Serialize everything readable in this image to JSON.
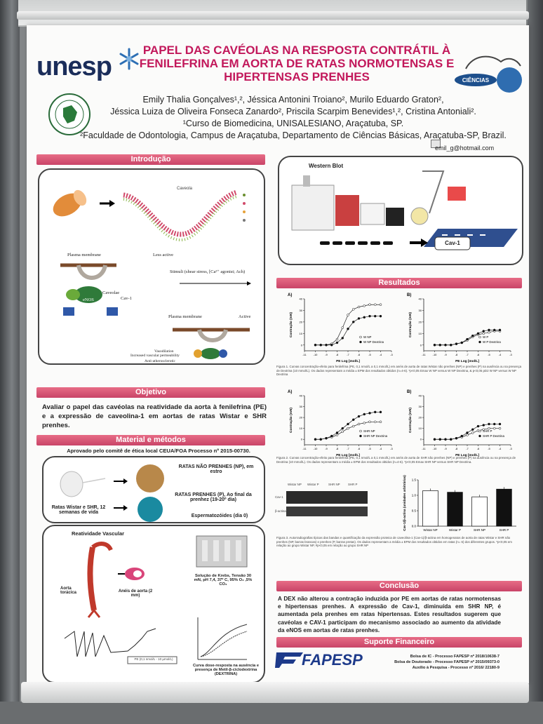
{
  "header": {
    "logo_text": "unesp",
    "title": "PAPEL DAS CAVÉOLAS NA RESPOSTA CONTRÁTIL À FENILEFRINA EM AORTA DE RATAS NORMOTENSAS E HIPERTENSAS PRENHES",
    "authors_line1": "Emily Thalia Gonçalves¹,², Jéssica Antonini Troiano², Murilo Eduardo Graton²,",
    "authors_line2": "Jéssica Luiza de Oliveira Fonseca Zanardo², Priscila Scarpim Benevides¹,², Cristina Antoniali².",
    "affiliation1": "¹Curso de Biomedicina, UNISALESIANO, Araçatuba, SP.",
    "affiliation2": "²Faculdade de Odontologia, Campus de Araçatuba, Departamento de Ciências Básicas, Araçatuba-SP, Brazil.",
    "email": "emil_g@hotmail.com"
  },
  "sections": {
    "introducao": "Introdução",
    "objetivo": "Objetivo",
    "material": "Material e métodos",
    "western": "Western Blot",
    "resultados": "Resultados",
    "conclusao": "Conclusão",
    "suporte": "Suporte Financeiro",
    "reatividade": "Reatividade Vascular"
  },
  "intro": {
    "caveola_label": "Caveola",
    "plasma_membrane": "Plasma membrane",
    "less_active": "Less active",
    "active": "Active",
    "stimuli": "Stimuli (shear stress, [Ca²⁺ agonist; Ach)",
    "caveolae": "Caveolae",
    "cav1": "Cav-1",
    "enos": "eNOS",
    "vasodilation": "Vasodilation",
    "permeability": "Increased vascular permeability",
    "antiatherogenic": "Anti-atherosclerotic"
  },
  "objetivo_text": "Avaliar o papel das cavéolas na reatividade da aorta à fenilefrina (PE) e a expressão de caveolina-1 em aortas de ratas Wistar e SHR prenhes.",
  "material": {
    "aprovado": "Aprovado pelo comitê de ética local CEUA/FOA Processo nº 2015-00730.",
    "rats_label": "Ratas Wistar e SHR, 12 semanas de vida",
    "np_label": "RATAS NÃO PRENHES (NP), em estro",
    "p_label": "RATAS PRENHES (P), Ao final da prenhez (19-20º dia)",
    "sperm_label": "Espermatozóides (dia 0)"
  },
  "reatividade": {
    "aorta": "Aorta torácica",
    "aneis": "Anéis de aorta (2 mm)",
    "krebs": "Solução de Krebs, Tensão 30 mN, pH 7,4, 37º C, 95% O₂ ,5% CO₂",
    "pe_label": "PE (0,1 nmol/L - 10 µmol/L)",
    "curve_label": "Curva dose-resposta na ausência e presença de Metil-β-ciclodextrina (DEXTRINA)"
  },
  "western": {
    "cav1_label": "Cav-1"
  },
  "results": {
    "fig1_caption": "Figura 1. Curvas concentração-efeito para fenilefrina (PE, 0,1 nmol/L a 0,1 mmol/L) em anéis de aorta de ratas Wistar não prenhes (NP) e prenhes (P) na ausência ou na presença de Dextrina (10 mmol/L). Os dados representam a média ± EPM dos resultados obtidos (n=4-6). *p<0,05 Emax W NP versus W NP Dextrina, & p<0,05 pD2 W NP versus W NP Dextrina",
    "fig2_caption": "Figura 2. Curvas concentração-efeito para fenilefrina (PE, 0,1 nmol/L a 0,1 mmol/L) em anéis de aorta de SHR não prenhes (NP) e prenhes (P) na ausência ou na presença de Dextrina (10 mmol/L). Os dados representam a média ± EPM dos resultados obtidos (n=4-6). *p<0,05 Emax SHR NP versus SHR NP Dextrina.",
    "fig3_caption": "Figura 3. Autorradiografias típicas das bandas e quantificação da expressão proteica de caveolina-1 (Cav-1)/β-actina em homogenatos de aorta de ratas Wistar e SHR não prenhes (NP, barras brancas) e prenhes (P, barras pretas). Os dados representam a média ± EPM dos resultados obtidos em ratas (n= 6) dos diferentes grupos. *p<0,05 em relação ao grupo Wistar NP, #p<0,05 em relação ao grupo SHR NP",
    "panel_a": "A)",
    "panel_b": "B)",
    "ylabel": "Contração (mN)",
    "xlabel": "PE Log [mol/L]",
    "legend_wnp": "W NP",
    "legend_wnpd": "W NP Dextrina",
    "legend_wp": "W P",
    "legend_wpd": "W P Dextrina",
    "legend_snp": "SHR NP",
    "legend_snpd": "SHR NP Dextrina",
    "legend_sp": "SHR P",
    "legend_spd": "SHR P Dextrina",
    "bar_ylabel": "Cav-1/β-actina (unidades arbitrárias)",
    "bar_categories": [
      "Wistar NP",
      "Wistar P",
      "SHR NP",
      "SHR P"
    ],
    "blot_lanes": [
      "Wistar NP",
      "Wistar P",
      "SHR NP",
      "SHR P"
    ],
    "blot_cav": "Cav-1",
    "blot_actin": "β-actina"
  },
  "conclusao_text": "A DEX não alterou a contração induzida por PE em aortas de ratas normotensas e hipertensas prenhes. A expressão de Cav-1, diminuída em SHR NP, é aumentada pela prenhes em ratas hipertensas. Estes resultados sugerem que cavéolas e CAV-1 participam do mecanismo associado ao aumento da atividade da eNOS em aortas de ratas prenhes.",
  "funding": {
    "logo_text": "FAPESP",
    "line1": "Bolsa de IC - Processo FAPESP nº 2018/10638-7",
    "line2": "Bolsa de Doutorado - Processo FAPESP nº 2015/09373-0",
    "line3": "Auxílio à Pesquisa - Processo nº 2016/ 22180-9"
  },
  "colors": {
    "banner": "#d9557a",
    "title": "#c2185b",
    "unesp": "#1b2d5a"
  },
  "chart_data": [
    {
      "type": "line",
      "title": "A)",
      "xlabel": "PE Log [mol/L]",
      "ylabel": "Contração (mN)",
      "xlim": [
        -11,
        -3
      ],
      "ylim": [
        -5,
        40
      ],
      "x": [
        -10,
        -9.5,
        -9,
        -8.5,
        -8,
        -7.5,
        -7,
        -6.5,
        -6,
        -5.5,
        -5,
        -4.5,
        -4
      ],
      "series": [
        {
          "name": "W NP",
          "values": [
            0,
            0,
            0,
            1,
            5,
            15,
            26,
            31,
            33,
            34,
            35,
            35,
            35
          ]
        },
        {
          "name": "W NP Dextrina",
          "values": [
            0,
            0,
            0,
            0,
            2,
            6,
            14,
            20,
            23,
            24,
            25,
            25,
            25
          ]
        }
      ]
    },
    {
      "type": "line",
      "title": "B)",
      "xlabel": "PE Log [mol/L]",
      "ylabel": "Contração (mN)",
      "xlim": [
        -11,
        -3
      ],
      "ylim": [
        -5,
        40
      ],
      "x": [
        -10,
        -9.5,
        -9,
        -8.5,
        -8,
        -7.5,
        -7,
        -6.5,
        -6,
        -5.5,
        -5,
        -4.5,
        -4
      ],
      "series": [
        {
          "name": "W P",
          "values": [
            0,
            0,
            0,
            0,
            1,
            2,
            4,
            7,
            9,
            10,
            11,
            12,
            12
          ]
        },
        {
          "name": "W P Dextrina",
          "values": [
            0,
            0,
            0,
            0,
            1,
            2,
            5,
            8,
            10,
            12,
            13,
            13,
            13
          ]
        }
      ]
    },
    {
      "type": "line",
      "title": "A)",
      "xlabel": "PE Log [mol/L]",
      "ylabel": "Contração (mN)",
      "xlim": [
        -11,
        -3
      ],
      "ylim": [
        -5,
        40
      ],
      "x": [
        -10,
        -9.5,
        -9,
        -8.5,
        -8,
        -7.5,
        -7,
        -6.5,
        -6,
        -5.5,
        -5,
        -4.5,
        -4
      ],
      "series": [
        {
          "name": "SHR NP",
          "values": [
            0,
            0,
            1,
            2,
            4,
            7,
            10,
            12,
            14,
            15,
            16,
            16,
            16
          ]
        },
        {
          "name": "SHR NP Dextrina",
          "values": [
            0,
            0,
            1,
            3,
            6,
            10,
            14,
            18,
            21,
            23,
            24,
            25,
            25
          ]
        }
      ]
    },
    {
      "type": "line",
      "title": "B)",
      "xlabel": "PE Log [mol/L]",
      "ylabel": "Contração (mN)",
      "xlim": [
        -11,
        -3
      ],
      "ylim": [
        -5,
        40
      ],
      "x": [
        -10,
        -9.5,
        -9,
        -8.5,
        -8,
        -7.5,
        -7,
        -6.5,
        -6,
        -5.5,
        -5,
        -4.5,
        -4
      ],
      "series": [
        {
          "name": "SHR P",
          "values": [
            0,
            0,
            0,
            0,
            1,
            2,
            4,
            6,
            8,
            9,
            10,
            10,
            10
          ]
        },
        {
          "name": "SHR P Dextrina",
          "values": [
            0,
            0,
            0,
            0,
            1,
            3,
            6,
            9,
            12,
            13,
            14,
            14,
            14
          ]
        }
      ]
    },
    {
      "type": "bar",
      "ylabel": "Cav-1/β-actina (unidades arbitrárias)",
      "categories": [
        "Wistar NP",
        "Wistar P",
        "SHR NP",
        "SHR P"
      ],
      "values": [
        1.15,
        1.1,
        0.95,
        1.2
      ],
      "ylim": [
        0,
        1.5
      ]
    }
  ]
}
